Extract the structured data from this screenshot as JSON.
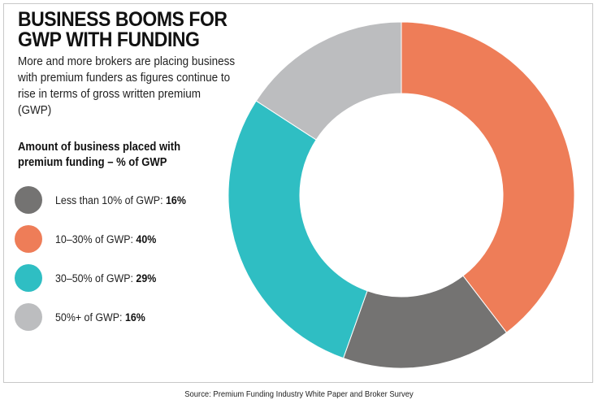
{
  "title": "BUSINESS BOOMS FOR GWP WITH FUNDING",
  "subtitle": "More and more brokers are placing business with premium funders as figures continue to rise in terms of gross written premium (GWP)",
  "source": "Source: Premium Funding Industry White Paper and Broker Survey",
  "chart_data": {
    "type": "pie",
    "donut": true,
    "title": "Amount of business placed with premium funding – % of GWP",
    "legend_position": "left",
    "slices": [
      {
        "label": "10–30% of GWP:",
        "value_label": "40%",
        "value": 40,
        "color": "#ee7d58"
      },
      {
        "label": "Less than 10% of GWP:",
        "value_label": "16%",
        "value": 16,
        "color": "#747372"
      },
      {
        "label": "30–50% of GWP:",
        "value_label": "29%",
        "value": 29,
        "color": "#2fbec3"
      },
      {
        "label": "50%+ of GWP:",
        "value_label": "16%",
        "value": 16,
        "color": "#bcbdbf"
      }
    ],
    "legend_order": [
      1,
      0,
      2,
      3
    ]
  }
}
